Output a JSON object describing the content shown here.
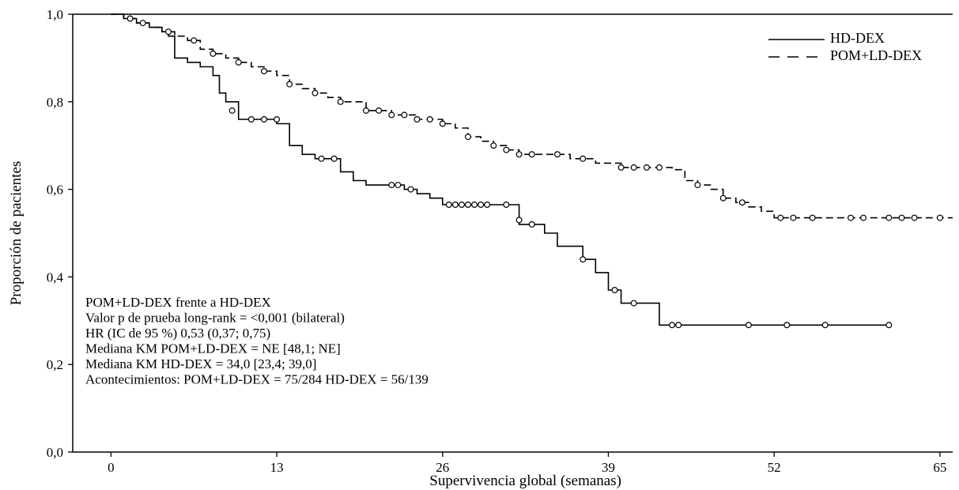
{
  "chart_data": {
    "type": "line",
    "subtype": "kaplan-meier",
    "xlabel": "Supervivencia global (semanas)",
    "ylabel": "Proporción de pacientes",
    "xlim": [
      -3,
      66
    ],
    "ylim": [
      0,
      1.0
    ],
    "x_ticks": [
      0,
      13,
      26,
      39,
      52,
      65
    ],
    "x_tick_labels": [
      "0",
      "13",
      "26",
      "39",
      "52",
      "65"
    ],
    "y_ticks": [
      0,
      0.2,
      0.4,
      0.6,
      0.8,
      1.0
    ],
    "y_tick_labels": [
      "0,0",
      "0,2",
      "0,4",
      "0,6",
      "0,8",
      "1,0"
    ],
    "grid": false,
    "legend_position": "top-right",
    "series": [
      {
        "name": "HD-DEX",
        "line_style": "solid",
        "color": "#000000",
        "x": [
          0,
          1,
          2,
          3,
          4,
          4.5,
          5,
          6,
          7,
          8,
          8.5,
          9,
          10,
          12,
          13,
          14,
          15,
          16,
          18,
          19,
          20,
          22,
          23,
          24,
          25,
          26,
          32,
          33,
          34,
          35,
          37,
          38,
          39,
          40,
          43,
          61
        ],
        "y": [
          1.0,
          0.99,
          0.98,
          0.97,
          0.96,
          0.95,
          0.9,
          0.89,
          0.88,
          0.86,
          0.82,
          0.8,
          0.76,
          0.76,
          0.75,
          0.7,
          0.68,
          0.67,
          0.64,
          0.62,
          0.61,
          0.61,
          0.6,
          0.59,
          0.58,
          0.565,
          0.52,
          0.52,
          0.5,
          0.47,
          0.44,
          0.41,
          0.37,
          0.34,
          0.29,
          0.29
        ],
        "censors_x": [
          9.5,
          11,
          12,
          13,
          16.5,
          17.5,
          22,
          22.5,
          23.5,
          26.5,
          27,
          27.5,
          28,
          28.5,
          29,
          29.5,
          31,
          32,
          33,
          37,
          39.5,
          41,
          44,
          44.5,
          50,
          53,
          56,
          61
        ],
        "censors_y": [
          0.78,
          0.76,
          0.76,
          0.76,
          0.67,
          0.67,
          0.61,
          0.61,
          0.6,
          0.565,
          0.565,
          0.565,
          0.565,
          0.565,
          0.565,
          0.565,
          0.565,
          0.53,
          0.52,
          0.44,
          0.37,
          0.34,
          0.29,
          0.29,
          0.29,
          0.29,
          0.29,
          0.29
        ]
      },
      {
        "name": "POM+LD-DEX",
        "line_style": "dashed",
        "color": "#000000",
        "x": [
          0,
          1,
          2,
          3,
          4,
          5,
          6,
          7,
          8,
          9,
          10,
          11,
          12,
          13,
          14,
          15,
          16,
          17,
          18,
          20,
          22,
          24,
          26,
          27,
          28,
          29,
          30,
          31,
          32,
          34,
          36,
          38,
          40,
          42,
          44,
          45,
          46,
          47,
          48,
          49,
          50,
          51,
          52,
          66
        ],
        "y": [
          1.0,
          0.99,
          0.98,
          0.97,
          0.96,
          0.95,
          0.94,
          0.92,
          0.91,
          0.9,
          0.89,
          0.88,
          0.87,
          0.86,
          0.84,
          0.83,
          0.82,
          0.81,
          0.8,
          0.78,
          0.77,
          0.76,
          0.75,
          0.74,
          0.72,
          0.71,
          0.7,
          0.69,
          0.68,
          0.68,
          0.67,
          0.66,
          0.65,
          0.65,
          0.645,
          0.62,
          0.61,
          0.6,
          0.58,
          0.57,
          0.56,
          0.55,
          0.535,
          0.535
        ],
        "censors_x": [
          1.5,
          2.5,
          4.5,
          6.5,
          8,
          10,
          12,
          14,
          16,
          18,
          20,
          21,
          22,
          23,
          24,
          25,
          26,
          28,
          30,
          31,
          32,
          33,
          35,
          37,
          40,
          41,
          42,
          43,
          46,
          48,
          49.5,
          52.5,
          53.5,
          55,
          58,
          59,
          61,
          62,
          63,
          65
        ],
        "censors_y": [
          0.99,
          0.98,
          0.96,
          0.94,
          0.91,
          0.89,
          0.87,
          0.84,
          0.82,
          0.8,
          0.78,
          0.78,
          0.77,
          0.77,
          0.76,
          0.76,
          0.75,
          0.72,
          0.7,
          0.69,
          0.68,
          0.68,
          0.68,
          0.67,
          0.65,
          0.65,
          0.65,
          0.65,
          0.61,
          0.58,
          0.57,
          0.535,
          0.535,
          0.535,
          0.535,
          0.535,
          0.535,
          0.535,
          0.535,
          0.535
        ]
      }
    ],
    "annotations": [
      "POM+LD-DEX frente a HD-DEX",
      "Valor p de prueba long-rank = <0,001 (bilateral)",
      "HR (IC de 95 %) 0,53 (0,37; 0,75)",
      "Mediana KM POM+LD-DEX = NE [48,1; NE]",
      "Mediana KM HD-DEX = 34,0 [23,4; 39,0]",
      "Acontecimientos: POM+LD-DEX = 75/284 HD-DEX = 56/139"
    ]
  }
}
